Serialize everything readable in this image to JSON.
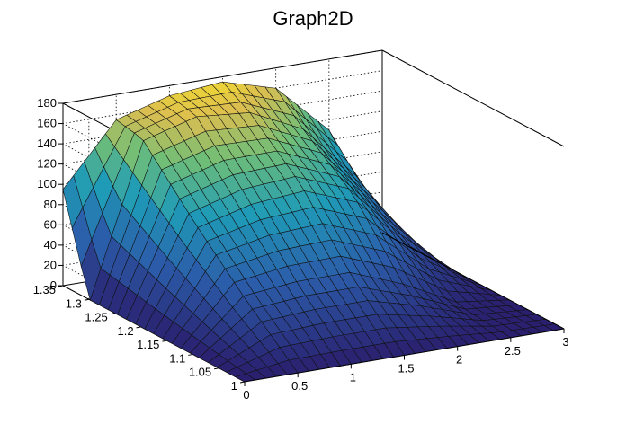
{
  "chart_data": {
    "type": "surface",
    "title": "Graph2D",
    "xlabel": "",
    "ylabel": "",
    "zlabel": "",
    "xlim": [
      0,
      3
    ],
    "ylim": [
      1,
      1.35
    ],
    "zlim": [
      0,
      180
    ],
    "x_ticks": [
      0,
      0.5,
      1,
      1.5,
      2,
      2.5,
      3
    ],
    "x_tick_labels": [
      "0",
      "0.5",
      "1",
      "1.5",
      "2",
      "2.5",
      "3"
    ],
    "y_ticks": [
      1,
      1.05,
      1.1,
      1.15,
      1.2,
      1.25,
      1.3,
      1.35
    ],
    "y_tick_labels": [
      "1",
      "1.05",
      "1.1",
      "1.15",
      "1.2",
      "1.25",
      "1.3",
      "1.35"
    ],
    "z_ticks": [
      0,
      20,
      40,
      60,
      80,
      100,
      120,
      140,
      160,
      180
    ],
    "z_tick_labels": [
      "0",
      "20",
      "40",
      "60",
      "80",
      "100",
      "120",
      "140",
      "160",
      "180"
    ],
    "grid": true,
    "colormap": "viridis-like",
    "colors": {
      "low": "#2a1f6e",
      "mid": "#1f9bb7",
      "high": "#f6e22a"
    },
    "sample_x": [
      0,
      0.5,
      1,
      1.5,
      2,
      2.5,
      3
    ],
    "sample_y": [
      1,
      1.1,
      1.2,
      1.3,
      1.35
    ],
    "sample_z": [
      [
        0,
        0,
        0,
        0,
        0,
        0,
        0
      ],
      [
        0,
        45,
        50,
        50,
        30,
        5,
        0
      ],
      [
        0,
        95,
        110,
        115,
        95,
        40,
        0
      ],
      [
        0,
        150,
        165,
        160,
        135,
        80,
        0
      ],
      [
        95,
        155,
        170,
        175,
        160,
        110,
        0
      ]
    ]
  }
}
